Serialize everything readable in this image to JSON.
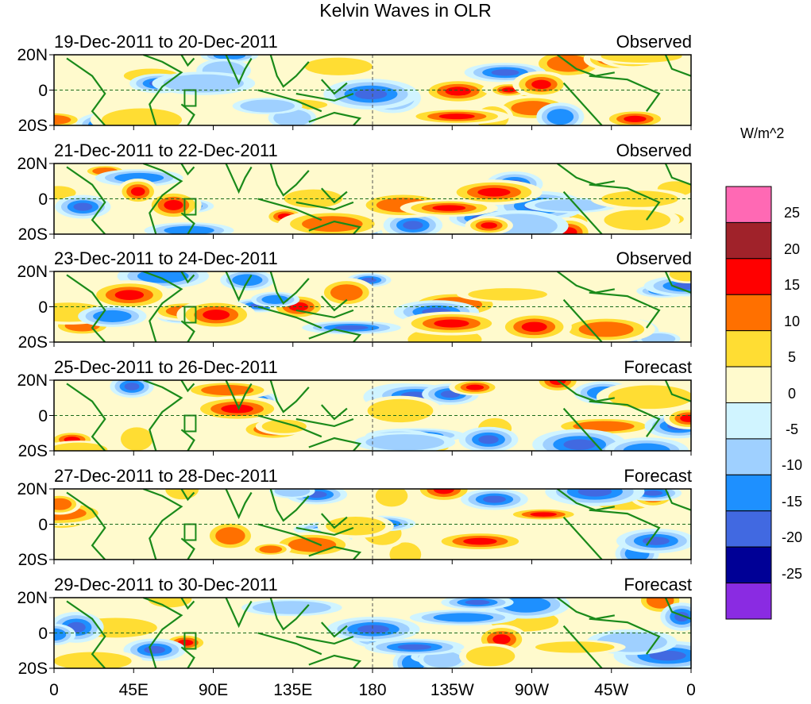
{
  "title": "Kelvin Waves in OLR",
  "panels": [
    {
      "date_range": "19-Dec-2011 to 20-Dec-2011",
      "type": "Observed"
    },
    {
      "date_range": "21-Dec-2011 to 22-Dec-2011",
      "type": "Observed"
    },
    {
      "date_range": "23-Dec-2011 to 24-Dec-2011",
      "type": "Observed"
    },
    {
      "date_range": "25-Dec-2011 to 26-Dec-2011",
      "type": "Forecast"
    },
    {
      "date_range": "27-Dec-2011 to 28-Dec-2011",
      "type": "Forecast"
    },
    {
      "date_range": "29-Dec-2011 to 30-Dec-2011",
      "type": "Forecast"
    }
  ],
  "y_ticks": [
    "20N",
    "0",
    "20S"
  ],
  "x_ticks": [
    "0",
    "45E",
    "90E",
    "135E",
    "180",
    "135W",
    "90W",
    "45W",
    "0"
  ],
  "colorbar": {
    "unit": "W/m^2",
    "labels": [
      "25",
      "20",
      "15",
      "10",
      "5",
      "0",
      "-5",
      "-10",
      "-15",
      "-20",
      "-25"
    ],
    "colors": [
      "#ff69b4",
      "#a0222a",
      "#ff0000",
      "#ff7000",
      "#ffdd33",
      "#fffacd",
      "#d0f4ff",
      "#9fd0ff",
      "#1e90ff",
      "#4169e1",
      "#000096",
      "#8a2be2"
    ]
  },
  "coastline_color": "#1a8a1a"
}
